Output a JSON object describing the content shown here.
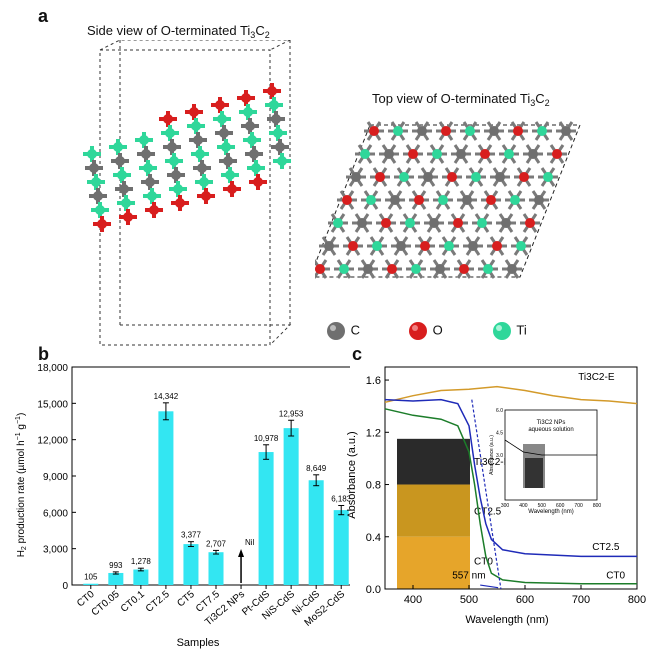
{
  "panel_a": {
    "letter": "a",
    "side_view": {
      "pre": "Side view of O-terminated Ti",
      "sub1": "3",
      "mid": "C",
      "sub2": "2"
    },
    "top_view": {
      "pre": "Top view of O-terminated Ti",
      "sub1": "3",
      "mid": "C",
      "sub2": "2"
    },
    "legend": [
      {
        "label": "C",
        "color": "#6f6f6f"
      },
      {
        "label": "O",
        "color": "#d81e1e"
      },
      {
        "label": "Ti",
        "color": "#2fd79a"
      }
    ]
  },
  "panel_b": {
    "letter": "b",
    "colors": {
      "bar": "#33e6f2",
      "axis": "#000000"
    }
  },
  "panel_c": {
    "letter": "c",
    "inset": {
      "title_line1": "Ti3C2 NPs",
      "title_line2": "aqueous solution"
    },
    "swatch_labels": [
      "Ti3C2-E",
      "CT2.5",
      "CT0"
    ],
    "colors": {
      "ti3c2e": "#d39a2a",
      "ct25": "#1f2bb8",
      "ct0": "#1c7d2a",
      "dash": "#1f2bb8"
    }
  },
  "chart_data": [
    {
      "type": "bar",
      "xlabel": "Samples",
      "ylabel": "H2 production rate (µmol h⁻¹ g⁻¹)",
      "ylim": [
        0,
        18000
      ],
      "yticks": [
        "0",
        "3,000",
        "6,000",
        "9,000",
        "12,000",
        "15,000",
        "18,000"
      ],
      "categories": [
        "CT0",
        "CT0.05",
        "CT0.1",
        "CT2.5",
        "CT5",
        "CT7.5",
        "Ti3C2 NPs",
        "Pt-CdS",
        "NiS-CdS",
        "Ni-CdS",
        "MoS2-CdS"
      ],
      "values": [
        105,
        993,
        1278,
        14342,
        3377,
        2707,
        0,
        10978,
        12953,
        8649,
        6183
      ],
      "labels": [
        "105",
        "993",
        "1,278",
        "14,342",
        "3,377",
        "2,707",
        "Nil",
        "10,978",
        "12,953",
        "8,649",
        "6,183"
      ],
      "errors": [
        0,
        90,
        110,
        700,
        200,
        150,
        0,
        600,
        650,
        450,
        380
      ]
    },
    {
      "type": "line",
      "xlabel": "Wavelength (nm)",
      "ylabel": "Absorbance (a.u.)",
      "xlim": [
        350,
        800
      ],
      "ylim": [
        0.0,
        1.7
      ],
      "xticks": [
        "400",
        "500",
        "600",
        "700",
        "800"
      ],
      "yticks": [
        "0.0",
        "0.4",
        "0.8",
        "1.2",
        "1.6"
      ],
      "annotation": "557 nm",
      "series": [
        {
          "name": "Ti3C2-E",
          "x": [
            350,
            400,
            450,
            500,
            550,
            600,
            650,
            700,
            750,
            800
          ],
          "y": [
            1.43,
            1.48,
            1.52,
            1.53,
            1.55,
            1.52,
            1.48,
            1.45,
            1.44,
            1.42
          ]
        },
        {
          "name": "CT2.5",
          "x": [
            350,
            400,
            450,
            480,
            500,
            510,
            520,
            530,
            540,
            560,
            600,
            700,
            800
          ],
          "y": [
            1.45,
            1.44,
            1.45,
            1.42,
            1.25,
            0.95,
            0.7,
            0.5,
            0.38,
            0.3,
            0.27,
            0.25,
            0.25
          ]
        },
        {
          "name": "CT0",
          "x": [
            350,
            400,
            450,
            480,
            500,
            510,
            520,
            530,
            540,
            560,
            600,
            700,
            800
          ],
          "y": [
            1.38,
            1.33,
            1.3,
            1.25,
            1.05,
            0.8,
            0.5,
            0.25,
            0.12,
            0.07,
            0.05,
            0.04,
            0.04
          ]
        }
      ]
    },
    {
      "type": "line",
      "xlabel": "Wavelength (nm)",
      "ylabel": "Absorbance (a.u.)",
      "xlim": [
        300,
        800
      ],
      "ylim": [
        0,
        6.0
      ],
      "xticks": [
        "300",
        "400",
        "500",
        "600",
        "700",
        "800"
      ],
      "yticks": [
        "6.0",
        "4.5",
        "3.0"
      ],
      "series": [
        {
          "name": "Ti3C2 NPs",
          "x": [
            300,
            400,
            500,
            600,
            700,
            800
          ],
          "y": [
            4.0,
            3.2,
            3.0,
            3.0,
            3.0,
            3.0
          ]
        }
      ]
    }
  ]
}
